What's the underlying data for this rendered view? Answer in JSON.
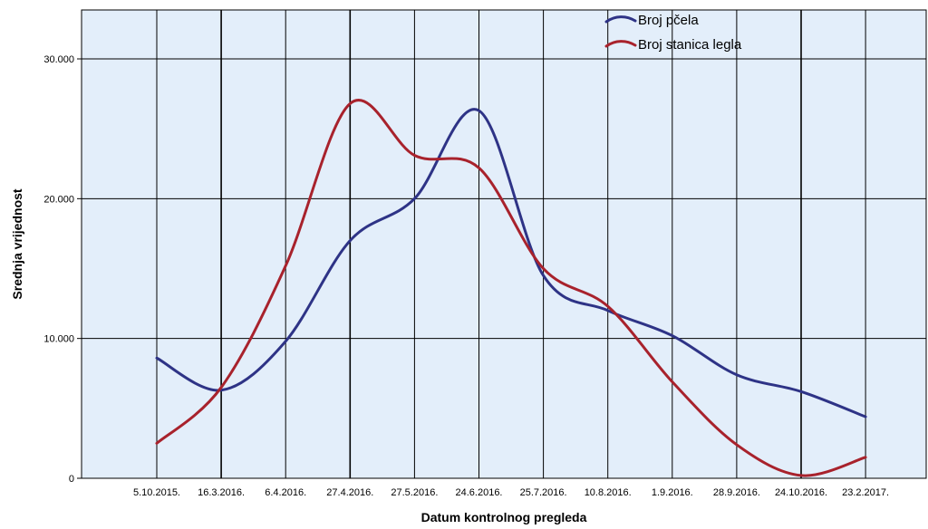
{
  "chart_data": {
    "type": "line",
    "xlabel": "Datum kontrolnog pregleda",
    "ylabel": "Srednja vrijednost",
    "categories": [
      "5.10.2015.",
      "16.3.2016.",
      "6.4.2016.",
      "27.4.2016.",
      "27.5.2016.",
      "24.6.2016.",
      "25.7.2016.",
      "10.8.2016.",
      "1.9.2016.",
      "28.9.2016.",
      "24.10.2016.",
      "23.2.2017."
    ],
    "y_ticks": [
      "0",
      "10.000",
      "20.000",
      "30.000"
    ],
    "ylim": [
      0,
      30000
    ],
    "grid": true,
    "legend_position": "top-right",
    "series": [
      {
        "name": "Broj pčela",
        "color": "#2e3386",
        "values": [
          8600,
          6300,
          9800,
          17000,
          20000,
          26300,
          14500,
          12000,
          10200,
          7400,
          6200,
          4400
        ]
      },
      {
        "name": "Broj stanica legla",
        "color": "#a8222c",
        "values": [
          2500,
          6500,
          15200,
          26800,
          23100,
          22200,
          15000,
          12300,
          6900,
          2400,
          200,
          1500
        ]
      }
    ]
  }
}
